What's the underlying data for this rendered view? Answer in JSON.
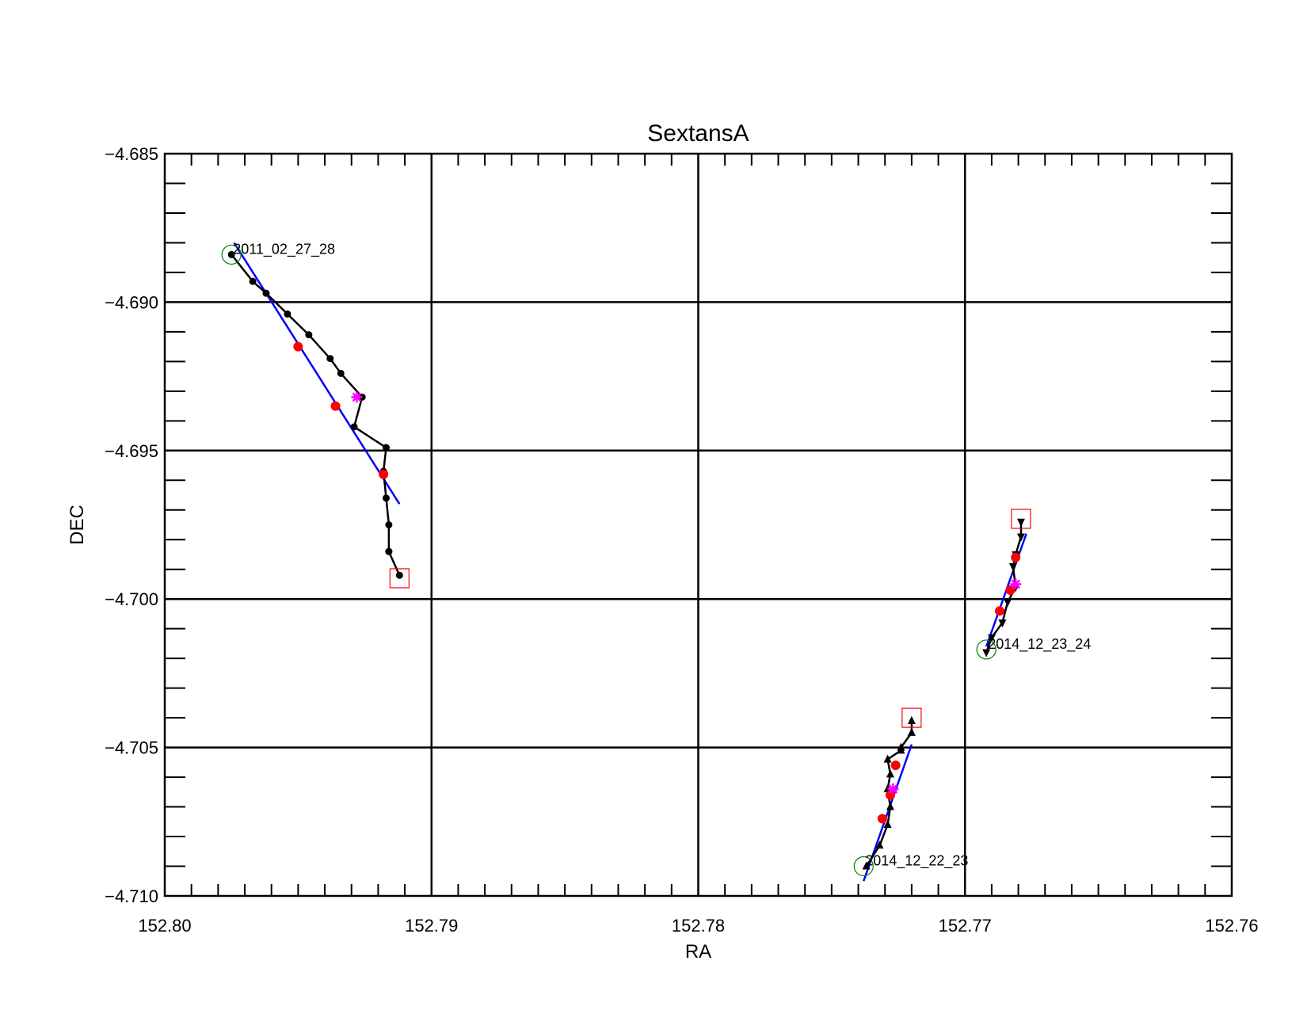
{
  "chart_data": {
    "type": "line",
    "title": "SextansA",
    "xlabel": "RA",
    "ylabel": "DEC",
    "xlim": [
      152.8,
      152.76
    ],
    "ylim": [
      -4.71,
      -4.685
    ],
    "x_reversed": true,
    "grid": true,
    "xticks": [
      "152.80",
      "152.79",
      "152.78",
      "152.77",
      "152.76"
    ],
    "xtick_values": [
      152.8,
      152.79,
      152.78,
      152.77,
      152.76
    ],
    "yticks": [
      "-4.685",
      "-4.690",
      "-4.695",
      "-4.700",
      "-4.705",
      "-4.710"
    ],
    "ytick_values": [
      -4.685,
      -4.69,
      -4.695,
      -4.7,
      -4.705,
      -4.71
    ],
    "colors": {
      "track": "#000000",
      "fit": "#0000ff",
      "red_points": "#ff0000",
      "star": "#ff00ff",
      "start_circle": "#008000",
      "end_square": "#ff0000"
    },
    "series": [
      {
        "annotation": "2011_02_27_28",
        "marker": "circle",
        "x": [
          152.7975,
          152.7967,
          152.7962,
          152.7954,
          152.7946,
          152.7938,
          152.7934,
          152.7926,
          152.7929,
          152.7917,
          152.7918,
          152.7917,
          152.7916,
          152.7916,
          152.7916,
          152.7912
        ],
        "y": [
          -4.6884,
          -4.6893,
          -4.6897,
          -4.6904,
          -4.6911,
          -4.6919,
          -4.6924,
          -4.6932,
          -4.6942,
          -4.6949,
          -4.6957,
          -4.6966,
          -4.6975,
          -4.6984,
          -4.6984,
          -4.6992
        ],
        "fit": {
          "x": [
            152.7974,
            152.7912
          ],
          "y": [
            -4.688,
            -4.6968
          ]
        },
        "red_points": {
          "x": [
            152.795,
            152.7936,
            152.7918
          ],
          "y": [
            -4.6915,
            -4.6935,
            -4.6958
          ]
        },
        "star": {
          "x": 152.7928,
          "y": -4.6932
        },
        "start_circle": {
          "x": 152.7975,
          "y": -4.6884
        },
        "end_square": {
          "x": 152.7912,
          "y": -4.6993
        }
      },
      {
        "annotation": "2014_12_22_23",
        "marker": "triangle-up",
        "x": [
          152.7737,
          152.7732,
          152.7729,
          152.7728,
          152.7729,
          152.7728,
          152.7729,
          152.7724,
          152.7724,
          152.772,
          152.772
        ],
        "y": [
          -4.709,
          -4.7083,
          -4.7076,
          -4.707,
          -4.7064,
          -4.7059,
          -4.7054,
          -4.7051,
          -4.705,
          -4.7045,
          -4.7041
        ],
        "fit": {
          "x": [
            152.7738,
            152.772
          ],
          "y": [
            -4.7095,
            -4.7049
          ]
        },
        "red_points": {
          "x": [
            152.7731,
            152.7728,
            152.7726
          ],
          "y": [
            -4.7074,
            -4.7066,
            -4.7056
          ]
        },
        "star": {
          "x": 152.7727,
          "y": -4.7064
        },
        "start_circle": {
          "x": 152.7738,
          "y": -4.709
        },
        "end_square": {
          "x": 152.772,
          "y": -4.704
        }
      },
      {
        "annotation": "2014_12_23_24",
        "marker": "triangle-down",
        "x": [
          152.7692,
          152.769,
          152.7686,
          152.7684,
          152.7681,
          152.7682,
          152.7681,
          152.7679,
          152.7679
        ],
        "y": [
          -4.7018,
          -4.7013,
          -4.7008,
          -4.7001,
          -4.6996,
          -4.6989,
          -4.6985,
          -4.6979,
          -4.6974
        ],
        "fit": {
          "x": [
            152.7692,
            152.7677
          ],
          "y": [
            -4.7016,
            -4.6978
          ]
        },
        "red_points": {
          "x": [
            152.7687,
            152.7683,
            152.7681
          ],
          "y": [
            -4.7004,
            -4.6997,
            -4.6986
          ]
        },
        "star": {
          "x": 152.7681,
          "y": -4.6995
        },
        "start_circle": {
          "x": 152.7692,
          "y": -4.7017
        },
        "end_square": {
          "x": 152.7679,
          "y": -4.6973
        }
      }
    ]
  }
}
